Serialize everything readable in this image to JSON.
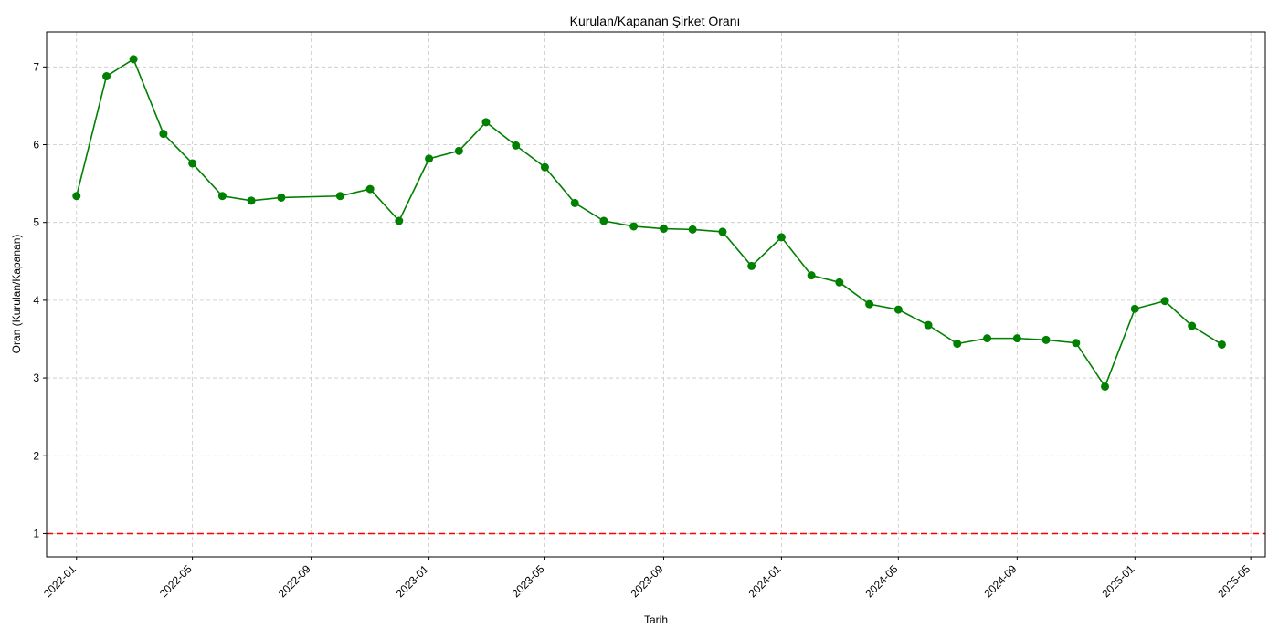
{
  "chart_data": {
    "type": "line",
    "title": "Kurulan/Kapanan Şirket Oranı",
    "xlabel": "Tarih",
    "ylabel": "Oran (Kurulan/Kapanan)",
    "ylim": [
      0.7,
      7.45
    ],
    "xlim": [
      "2021-12-01",
      "2025-05-16"
    ],
    "yticks": [
      1,
      2,
      3,
      4,
      5,
      6,
      7
    ],
    "xticks": [
      "2022-01",
      "2022-05",
      "2022-09",
      "2023-01",
      "2023-05",
      "2023-09",
      "2024-01",
      "2024-05",
      "2024-09",
      "2025-01",
      "2025-05"
    ],
    "grid": true,
    "colors": {
      "series": "#008000",
      "reference": "#ff0000",
      "grid": "#c8c8c8"
    },
    "reference_line": {
      "y": 1
    },
    "series": [
      {
        "x": [
          "2022-01",
          "2022-02",
          "2022-03",
          "2022-04",
          "2022-05",
          "2022-06",
          "2022-07",
          "2022-08",
          "2022-10",
          "2022-11",
          "2022-12",
          "2023-01",
          "2023-02",
          "2023-03",
          "2023-04",
          "2023-05",
          "2023-06",
          "2023-07",
          "2023-08",
          "2023-09",
          "2023-10",
          "2023-11",
          "2023-12",
          "2024-01",
          "2024-02",
          "2024-03",
          "2024-04",
          "2024-05",
          "2024-06",
          "2024-07",
          "2024-08",
          "2024-09",
          "2024-10",
          "2024-11",
          "2024-12",
          "2025-01",
          "2025-02",
          "2025-03",
          "2025-04"
        ],
        "values": [
          5.34,
          6.88,
          7.1,
          6.14,
          5.76,
          5.34,
          5.28,
          5.32,
          5.34,
          5.43,
          5.02,
          5.82,
          5.92,
          6.29,
          5.99,
          5.71,
          5.25,
          5.02,
          4.95,
          4.92,
          4.91,
          4.88,
          4.44,
          4.81,
          4.32,
          4.23,
          3.95,
          3.88,
          3.68,
          3.44,
          3.51,
          3.51,
          3.49,
          3.45,
          2.89,
          3.89,
          3.99,
          3.67,
          3.43
        ]
      }
    ]
  }
}
